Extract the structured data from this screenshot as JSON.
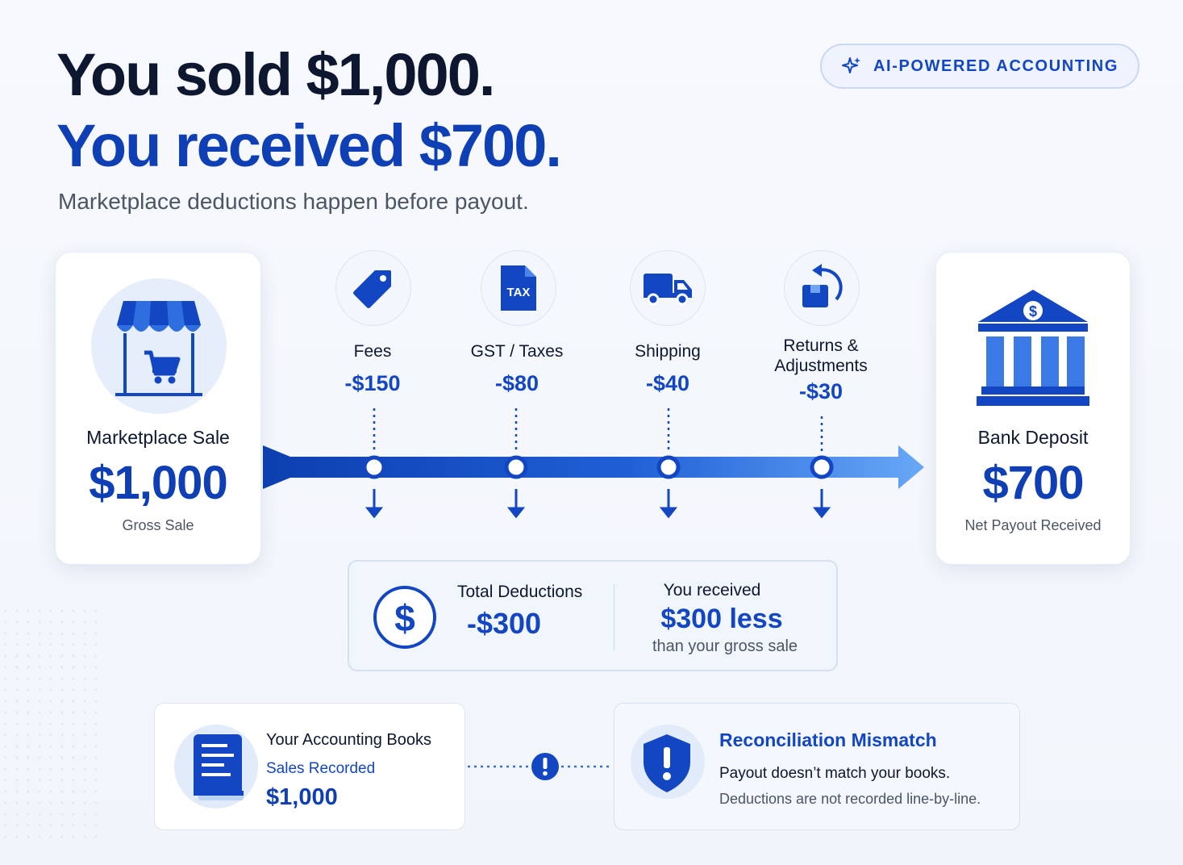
{
  "header": {
    "title_line1": "You sold $1,000.",
    "title_line2": "You received $700.",
    "subtitle": "Marketplace deductions happen before payout.",
    "badge": "AI-POWERED ACCOUNTING"
  },
  "sale": {
    "label": "Marketplace Sale",
    "value": "$1,000",
    "sub": "Gross Sale"
  },
  "bank": {
    "label": "Bank Deposit",
    "value": "$700",
    "sub": "Net Payout Received"
  },
  "steps": [
    {
      "label": "Fees",
      "value": "-$150",
      "icon": "tag-icon"
    },
    {
      "label": "GST / Taxes",
      "value": "-$80",
      "icon": "tax-document-icon",
      "icon_text": "TAX"
    },
    {
      "label": "Shipping",
      "value": "-$40",
      "icon": "truck-icon"
    },
    {
      "label_line1": "Returns &",
      "label_line2": "Adjustments",
      "value": "-$30",
      "icon": "return-box-icon"
    }
  ],
  "summary": {
    "total_label": "Total Deductions",
    "total_value": "-$300",
    "received_label": "You received",
    "received_value": "$300 less",
    "received_sub": "than your gross sale"
  },
  "books": {
    "title": "Your Accounting Books",
    "label": "Sales Recorded",
    "value": "$1,000"
  },
  "mismatch": {
    "title": "Reconciliation Mismatch",
    "line1": "Payout doesn’t match your books.",
    "line2": "Deductions are not recorded line-by-line."
  },
  "colors": {
    "primary": "#0f3fb4",
    "accent": "#1346c2",
    "light": "#5fa0f5"
  }
}
